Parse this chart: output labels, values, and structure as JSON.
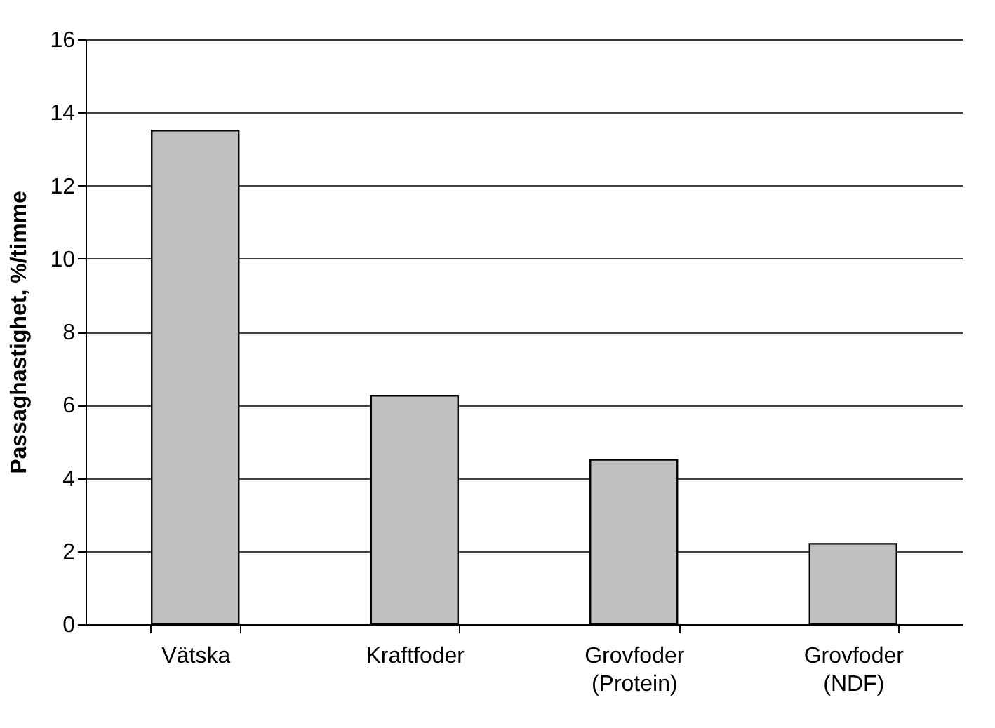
{
  "chart_data": {
    "type": "bar",
    "ylabel": "Passaghastighet, %/timme",
    "categories": [
      "Vätska",
      "Kraftfoder",
      "Grovfoder (Protein)",
      "Grovfoder (NDF)"
    ],
    "values": [
      13.5,
      6.25,
      4.5,
      2.2
    ],
    "color": "#c0c0c0",
    "ylim": [
      0,
      16
    ],
    "yticks": [
      0,
      2,
      4,
      6,
      8,
      10,
      12,
      14,
      16
    ],
    "grid": "y"
  }
}
